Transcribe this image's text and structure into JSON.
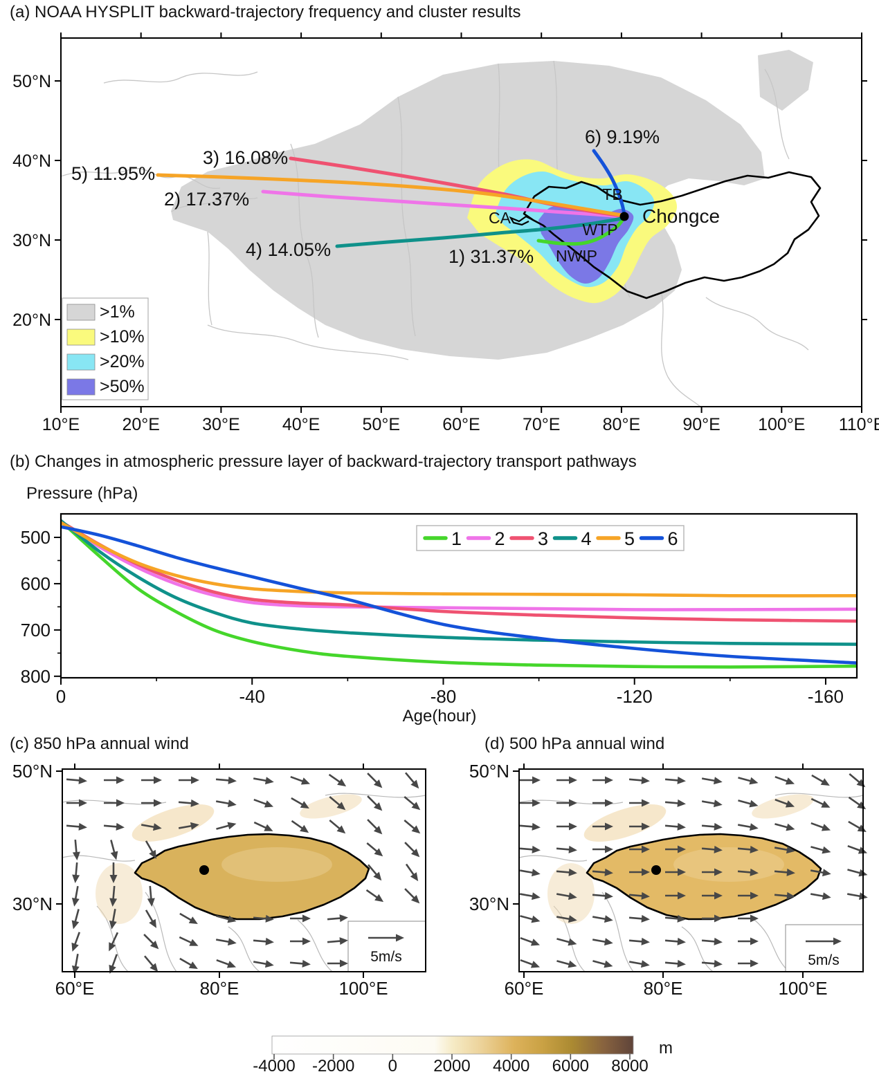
{
  "panel_a": {
    "title": "(a) NOAA HYSPLIT backward-trajectory frequency and cluster results",
    "x_tick_labels": [
      "10°E",
      "20°E",
      "30°E",
      "40°E",
      "50°E",
      "60°E",
      "70°E",
      "80°E",
      "90°E",
      "100°E",
      "110°E"
    ],
    "y_tick_labels": [
      "50°N",
      "40°N",
      "30°N",
      "20°N"
    ],
    "frequency_legend": [
      {
        "label": ">1%",
        "color": "#d6d6d6"
      },
      {
        "label": ">10%",
        "color": "#fafa7d"
      },
      {
        "label": ">20%",
        "color": "#88e6f4"
      },
      {
        "label": ">50%",
        "color": "#7b78e6"
      }
    ],
    "site_label": "Chongce",
    "region_labels": [
      "TB",
      "CA",
      "WTP",
      "NWIP"
    ],
    "clusters": [
      {
        "id": "1",
        "label": "1) 31.37%",
        "percent": 31.37,
        "color": "#45d62b"
      },
      {
        "id": "2",
        "label": "2) 17.37%",
        "percent": 17.37,
        "color": "#ef74e8"
      },
      {
        "id": "3",
        "label": "3) 16.08%",
        "percent": 16.08,
        "color": "#ef5271"
      },
      {
        "id": "4",
        "label": "4) 14.05%",
        "percent": 14.05,
        "color": "#0f918a"
      },
      {
        "id": "5",
        "label": "5) 11.95%",
        "percent": 11.95,
        "color": "#f6a426"
      },
      {
        "id": "6",
        "label": "6) 9.19%",
        "percent": 9.19,
        "color": "#1452d9"
      }
    ]
  },
  "chart_data": {
    "type": "line",
    "title": "(b) Changes in atmospheric pressure layer of backward-trajectory transport pathways",
    "ylabel": "Pressure (hPa)",
    "xlabel": "Age(hour)",
    "y_axis_inverted": true,
    "x_ticks": [
      0,
      -40,
      -80,
      -120,
      -160
    ],
    "y_ticks": [
      500,
      600,
      700,
      800
    ],
    "xlim": [
      0,
      -168
    ],
    "ylim": [
      450,
      800
    ],
    "legend_position": "top-center",
    "x": [
      0,
      -8,
      -16,
      -24,
      -32,
      -40,
      -50,
      -60,
      -80,
      -100,
      -120,
      -140,
      -168
    ],
    "series": [
      {
        "name": "1",
        "color": "#45d62b",
        "values": [
          465,
          540,
          610,
          660,
          700,
          725,
          745,
          757,
          770,
          776,
          779,
          780,
          778
        ]
      },
      {
        "name": "2",
        "color": "#ef74e8",
        "values": [
          467,
          520,
          565,
          600,
          625,
          641,
          648,
          650,
          652,
          654,
          656,
          656,
          655
        ]
      },
      {
        "name": "3",
        "color": "#ef5271",
        "values": [
          466,
          515,
          558,
          592,
          618,
          634,
          642,
          646,
          660,
          668,
          674,
          678,
          681
        ]
      },
      {
        "name": "4",
        "color": "#0f918a",
        "values": [
          464,
          530,
          585,
          630,
          662,
          685,
          698,
          706,
          716,
          722,
          726,
          729,
          731
        ]
      },
      {
        "name": "5",
        "color": "#f6a426",
        "values": [
          468,
          516,
          555,
          582,
          600,
          611,
          617,
          620,
          622,
          623,
          624,
          626,
          626
        ]
      },
      {
        "name": "6",
        "color": "#1452d9",
        "values": [
          477,
          495,
          518,
          543,
          565,
          585,
          610,
          634,
          688,
          718,
          740,
          757,
          772
        ]
      }
    ]
  },
  "panel_c": {
    "title": "(c) 850 hPa annual wind",
    "x_tick_labels": [
      "60°E",
      "80°E",
      "100°E"
    ],
    "y_tick_labels": [
      "50°N",
      "30°N"
    ],
    "wind_ref_label": "5m/s",
    "wind_angles": [
      [
        5,
        0,
        0,
        0,
        5,
        10,
        20,
        35,
        45,
        50
      ],
      [
        0,
        0,
        0,
        5,
        10,
        20,
        30,
        40,
        45,
        40
      ],
      [
        5,
        5,
        10,
        -10,
        -15,
        25,
        35,
        40,
        45,
        40
      ],
      [
        85,
        75,
        60,
        -20,
        -25,
        15,
        25,
        30,
        40,
        45
      ],
      [
        95,
        90,
        80,
        70,
        60,
        40,
        20,
        10,
        50,
        55
      ],
      [
        100,
        95,
        85,
        40,
        20,
        10,
        5,
        0,
        35,
        45
      ],
      [
        105,
        100,
        60,
        30,
        15,
        5,
        0,
        -5,
        20,
        35
      ],
      [
        110,
        115,
        45,
        25,
        10,
        5,
        0,
        -5,
        10,
        25
      ],
      [
        100,
        110,
        50,
        30,
        20,
        10,
        5,
        0,
        5,
        15
      ]
    ]
  },
  "panel_d": {
    "title": "(d) 500 hPa annual wind",
    "x_tick_labels": [
      "60°E",
      "80°E",
      "100°E"
    ],
    "y_tick_labels": [
      "50°N",
      "30°N"
    ],
    "wind_ref_label": "5m/s",
    "wind_angles": [
      [
        0,
        0,
        0,
        5,
        5,
        10,
        15,
        20,
        30,
        40
      ],
      [
        0,
        0,
        0,
        0,
        5,
        10,
        15,
        20,
        25,
        35
      ],
      [
        5,
        0,
        0,
        0,
        5,
        5,
        10,
        15,
        20,
        30
      ],
      [
        5,
        5,
        0,
        0,
        0,
        5,
        5,
        10,
        15,
        20
      ],
      [
        10,
        5,
        5,
        0,
        0,
        0,
        5,
        5,
        10,
        15
      ],
      [
        10,
        10,
        5,
        5,
        0,
        0,
        0,
        5,
        10,
        10
      ],
      [
        15,
        10,
        10,
        5,
        5,
        0,
        0,
        0,
        5,
        10
      ],
      [
        20,
        15,
        10,
        5,
        5,
        5,
        0,
        0,
        0,
        5
      ],
      [
        20,
        15,
        15,
        10,
        5,
        5,
        0,
        0,
        0,
        0
      ]
    ]
  },
  "colorbar": {
    "tick_labels": [
      "-4000",
      "-2000",
      "0",
      "2000",
      "4000",
      "6000",
      "8000"
    ],
    "tick_values": [
      -4000,
      -2000,
      0,
      2000,
      4000,
      6000,
      8000
    ],
    "unit_label": "m",
    "gradient": [
      "#ffffff",
      "#fdfbf3",
      "#f6ebc6",
      "#ecd299",
      "#ddb25b",
      "#c9a144",
      "#ab8a32",
      "#87623f",
      "#5f443a"
    ]
  }
}
